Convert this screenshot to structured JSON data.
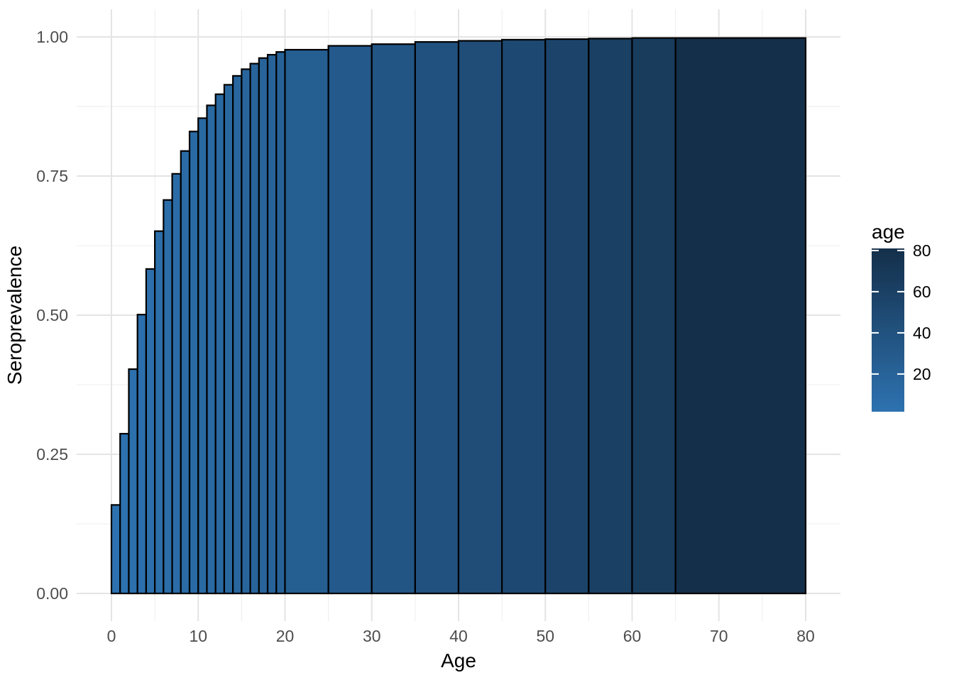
{
  "chart_data": {
    "type": "bar",
    "title": "",
    "xlabel": "Age",
    "ylabel": "Seroprevalence",
    "x_axis": {
      "ticks": [
        0,
        10,
        20,
        30,
        40,
        50,
        60,
        70,
        80
      ],
      "minor_ticks": [
        5,
        15,
        25,
        35,
        45,
        55,
        65,
        75
      ],
      "range": [
        0,
        80
      ]
    },
    "y_axis": {
      "ticks": [
        0.0,
        0.25,
        0.5,
        0.75,
        1.0
      ],
      "tick_labels": [
        "0.00",
        "0.25",
        "0.50",
        "0.75",
        "1.00"
      ],
      "minor_ticks": [
        0.125,
        0.375,
        0.625,
        0.875
      ],
      "range": [
        0,
        1
      ]
    },
    "grid": true,
    "bars": [
      {
        "age_start": 0,
        "age_end": 1,
        "value": 0.159
      },
      {
        "age_start": 1,
        "age_end": 2,
        "value": 0.287
      },
      {
        "age_start": 2,
        "age_end": 3,
        "value": 0.403
      },
      {
        "age_start": 3,
        "age_end": 4,
        "value": 0.501
      },
      {
        "age_start": 4,
        "age_end": 5,
        "value": 0.583
      },
      {
        "age_start": 5,
        "age_end": 6,
        "value": 0.651
      },
      {
        "age_start": 6,
        "age_end": 7,
        "value": 0.707
      },
      {
        "age_start": 7,
        "age_end": 8,
        "value": 0.754
      },
      {
        "age_start": 8,
        "age_end": 9,
        "value": 0.795
      },
      {
        "age_start": 9,
        "age_end": 10,
        "value": 0.83
      },
      {
        "age_start": 10,
        "age_end": 11,
        "value": 0.854
      },
      {
        "age_start": 11,
        "age_end": 12,
        "value": 0.877
      },
      {
        "age_start": 12,
        "age_end": 13,
        "value": 0.897
      },
      {
        "age_start": 13,
        "age_end": 14,
        "value": 0.914
      },
      {
        "age_start": 14,
        "age_end": 15,
        "value": 0.93
      },
      {
        "age_start": 15,
        "age_end": 16,
        "value": 0.942
      },
      {
        "age_start": 16,
        "age_end": 17,
        "value": 0.952
      },
      {
        "age_start": 17,
        "age_end": 18,
        "value": 0.962
      },
      {
        "age_start": 18,
        "age_end": 19,
        "value": 0.968
      },
      {
        "age_start": 19,
        "age_end": 20,
        "value": 0.973
      },
      {
        "age_start": 20,
        "age_end": 25,
        "value": 0.977
      },
      {
        "age_start": 25,
        "age_end": 30,
        "value": 0.984
      },
      {
        "age_start": 30,
        "age_end": 35,
        "value": 0.987
      },
      {
        "age_start": 35,
        "age_end": 40,
        "value": 0.991
      },
      {
        "age_start": 40,
        "age_end": 45,
        "value": 0.993
      },
      {
        "age_start": 45,
        "age_end": 50,
        "value": 0.995
      },
      {
        "age_start": 50,
        "age_end": 55,
        "value": 0.996
      },
      {
        "age_start": 55,
        "age_end": 60,
        "value": 0.997
      },
      {
        "age_start": 60,
        "age_end": 65,
        "value": 0.998
      },
      {
        "age_start": 65,
        "age_end": 80,
        "value": 0.998
      }
    ],
    "fill_scale": {
      "field": "age",
      "low_color": "#2d72b0",
      "high_color": "#142f4a",
      "domain": [
        1,
        80
      ]
    },
    "bar_stroke_color": "#000000",
    "legend": {
      "title": "age",
      "position": "right",
      "ticks": [
        80,
        60,
        40,
        20
      ],
      "tick_labels": [
        "80",
        "60",
        "40",
        "20"
      ]
    },
    "colors": {
      "grid_major": "#e4e4e4",
      "grid_minor": "#f0f0f0",
      "axis_text": "#4d4d4d",
      "title_text": "#000000",
      "background": "#ffffff"
    }
  }
}
